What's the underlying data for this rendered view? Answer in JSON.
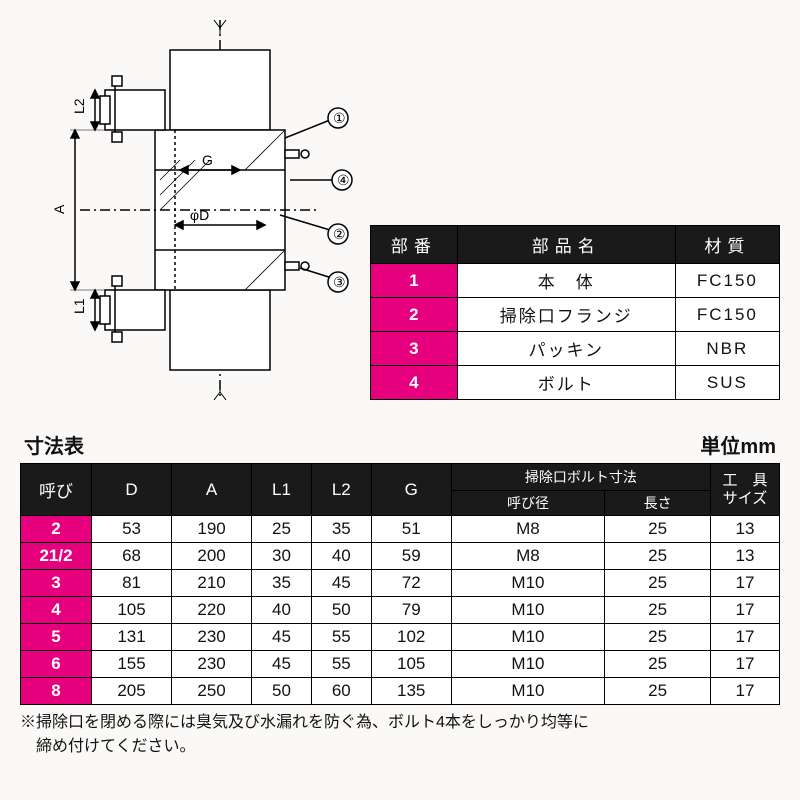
{
  "diagram": {
    "labels": {
      "G": "G",
      "phiD": "φD",
      "A": "A",
      "L1": "L1",
      "L2": "L2"
    },
    "callouts": [
      "①",
      "②",
      "③",
      "④"
    ],
    "stroke": "#000",
    "fill": "#fff"
  },
  "parts_table": {
    "headers": [
      "部番",
      "部品名",
      "材質"
    ],
    "rows": [
      {
        "num": "1",
        "name": "本　体",
        "mat": "FC150"
      },
      {
        "num": "2",
        "name": "掃除口フランジ",
        "mat": "FC150"
      },
      {
        "num": "3",
        "name": "パッキン",
        "mat": "NBR"
      },
      {
        "num": "4",
        "name": "ボルト",
        "mat": "SUS"
      }
    ],
    "header_bg": "#1a1a1a",
    "header_fg": "#fff",
    "numcol_bg": "#e6007e",
    "numcol_fg": "#fff",
    "cell_bg": "#ffffff"
  },
  "dim_title": "寸法表",
  "dim_unit": "単位mm",
  "dim_table": {
    "top_headers": [
      "呼び",
      "D",
      "A",
      "L1",
      "L2",
      "G"
    ],
    "group_header": "掃除口ボルト寸法",
    "group_sub": [
      "呼び径",
      "長さ"
    ],
    "tool_header": "工　具\nサイズ",
    "rows": [
      {
        "call": "2",
        "D": "53",
        "A": "190",
        "L1": "25",
        "L2": "35",
        "G": "51",
        "bd": "M8",
        "bl": "25",
        "tool": "13"
      },
      {
        "call": "21/2",
        "D": "68",
        "A": "200",
        "L1": "30",
        "L2": "40",
        "G": "59",
        "bd": "M8",
        "bl": "25",
        "tool": "13"
      },
      {
        "call": "3",
        "D": "81",
        "A": "210",
        "L1": "35",
        "L2": "45",
        "G": "72",
        "bd": "M10",
        "bl": "25",
        "tool": "17"
      },
      {
        "call": "4",
        "D": "105",
        "A": "220",
        "L1": "40",
        "L2": "50",
        "G": "79",
        "bd": "M10",
        "bl": "25",
        "tool": "17"
      },
      {
        "call": "5",
        "D": "131",
        "A": "230",
        "L1": "45",
        "L2": "55",
        "G": "102",
        "bd": "M10",
        "bl": "25",
        "tool": "17"
      },
      {
        "call": "6",
        "D": "155",
        "A": "230",
        "L1": "45",
        "L2": "55",
        "G": "105",
        "bd": "M10",
        "bl": "25",
        "tool": "17"
      },
      {
        "call": "8",
        "D": "205",
        "A": "250",
        "L1": "50",
        "L2": "60",
        "G": "135",
        "bd": "M10",
        "bl": "25",
        "tool": "17"
      }
    ],
    "header_bg": "#1a1a1a",
    "row_label_bg": "#e6007e"
  },
  "footnote": "※掃除口を閉める際には臭気及び水漏れを防ぐ為、ボルト4本をしっかり均等に\n　締め付けてください。"
}
